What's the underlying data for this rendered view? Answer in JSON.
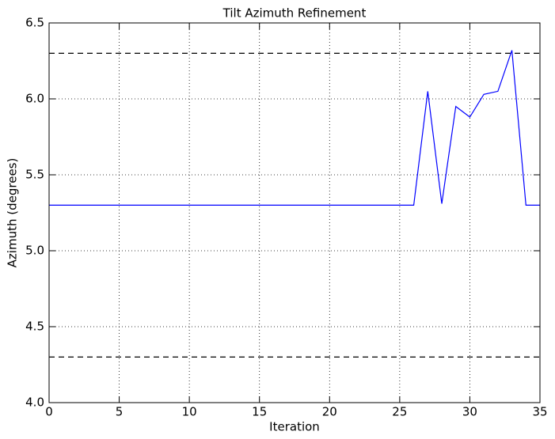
{
  "chart_data": {
    "type": "line",
    "title": "Tilt Azimuth Refinement",
    "x_label": "Iteration",
    "y_label": "Azimuth (degrees)",
    "x": [
      0,
      1,
      2,
      3,
      4,
      5,
      6,
      7,
      8,
      9,
      10,
      11,
      12,
      13,
      14,
      15,
      16,
      17,
      18,
      19,
      20,
      21,
      22,
      23,
      24,
      25,
      26,
      27,
      28,
      29,
      30,
      31,
      32,
      33,
      34,
      35
    ],
    "series": [
      {
        "color": "#0000ff",
        "values": [
          5.3,
          5.3,
          5.3,
          5.3,
          5.3,
          5.3,
          5.3,
          5.3,
          5.3,
          5.3,
          5.3,
          5.3,
          5.3,
          5.3,
          5.3,
          5.3,
          5.3,
          5.3,
          5.3,
          5.3,
          5.3,
          5.3,
          5.3,
          5.3,
          5.3,
          5.3,
          5.3,
          6.05,
          5.31,
          5.95,
          5.88,
          6.03,
          6.05,
          6.32,
          5.3,
          5.3
        ]
      }
    ],
    "reference_lines": [
      6.3,
      4.3
    ],
    "xlim": [
      0,
      35
    ],
    "xticks": [
      0,
      5,
      10,
      15,
      20,
      25,
      30,
      35
    ],
    "ylim": [
      4,
      6.5
    ],
    "yticks": [
      {
        "value": 4,
        "label": "4.0"
      },
      4.5,
      {
        "value": 5,
        "label": "5.0"
      },
      5.5,
      {
        "value": 6,
        "label": "6.0"
      },
      6.5
    ],
    "grid": true
  }
}
